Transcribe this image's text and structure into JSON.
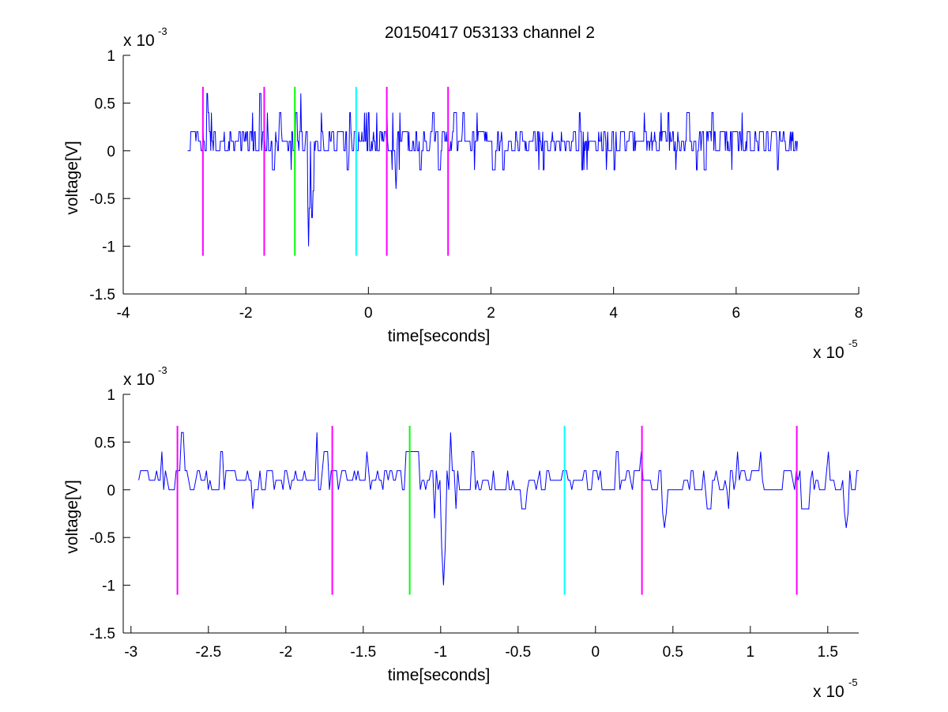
{
  "chart_data": [
    {
      "type": "line",
      "title": "20150417 053133 channel 2",
      "xlabel": "time[seconds]",
      "ylabel": "voltage[V]",
      "x_exponent_label": "x 10",
      "x_exponent": "-5",
      "y_exponent_label": "x 10",
      "y_exponent": "-3",
      "xlim": [
        -4,
        8
      ],
      "ylim": [
        -1.5,
        1
      ],
      "xticks": [
        -4,
        -2,
        0,
        2,
        4,
        6,
        8
      ],
      "xtick_labels": [
        "-4",
        "-2",
        "0",
        "2",
        "4",
        "6",
        "8"
      ],
      "yticks": [
        1,
        0.5,
        0,
        -0.5,
        -1,
        -1.5
      ],
      "ytick_labels": [
        "1",
        "0.5",
        "0",
        "-0.5",
        "-1",
        "-1.5"
      ],
      "grid": false,
      "trace": {
        "color": "#0000ff",
        "x_range": [
          -2.95,
          7.0
        ],
        "baseline_levels": [
          0,
          0.1,
          0.2
        ],
        "noise_amplitude": 0.2,
        "events": [
          {
            "x": -2.63,
            "y": 0.6
          },
          {
            "x": -1.77,
            "y": 0.6
          },
          {
            "x": -1.45,
            "y": 0.4
          },
          {
            "x": -1.18,
            "y": 0.4
          },
          {
            "x": -1.1,
            "y": 0.6
          },
          {
            "x": -0.98,
            "y": -1.0
          },
          {
            "x": -0.92,
            "y": -0.7
          },
          {
            "x": -0.3,
            "y": 0.4
          },
          {
            "x": 0.0,
            "y": 0.4
          },
          {
            "x": 0.45,
            "y": -0.4
          },
          {
            "x": 1.4,
            "y": 0.4
          },
          {
            "x": 4.5,
            "y": 0.4
          },
          {
            "x": 5.2,
            "y": 0.4
          },
          {
            "x": 5.6,
            "y": 0.4
          },
          {
            "x": 6.1,
            "y": 0.4
          }
        ]
      },
      "markers": [
        {
          "x": -2.7,
          "y_min": -1.1,
          "y_max": 0.67,
          "color": "#ff00ff"
        },
        {
          "x": -1.7,
          "y_min": -1.1,
          "y_max": 0.67,
          "color": "#ff00ff"
        },
        {
          "x": -1.2,
          "y_min": -1.1,
          "y_max": 0.67,
          "color": "#00ff00"
        },
        {
          "x": -0.2,
          "y_min": -1.1,
          "y_max": 0.67,
          "color": "#00ffff"
        },
        {
          "x": 0.3,
          "y_min": -1.1,
          "y_max": 0.67,
          "color": "#ff00ff"
        },
        {
          "x": 1.3,
          "y_min": -1.1,
          "y_max": 0.67,
          "color": "#ff00ff"
        }
      ]
    },
    {
      "type": "line",
      "title": "",
      "xlabel": "time[seconds]",
      "ylabel": "voltage[V]",
      "x_exponent_label": "x 10",
      "x_exponent": "-5",
      "y_exponent_label": "x 10",
      "y_exponent": "-3",
      "xlim": [
        -3.05,
        1.7
      ],
      "ylim": [
        -1.5,
        1
      ],
      "xticks": [
        -3,
        -2.5,
        -2,
        -1.5,
        -1,
        -0.5,
        0,
        0.5,
        1,
        1.5
      ],
      "xtick_labels": [
        "-3",
        "-2.5",
        "-2",
        "-1.5",
        "-1",
        "-0.5",
        "0",
        "0.5",
        "1",
        "1.5"
      ],
      "yticks": [
        1,
        0.5,
        0,
        -0.5,
        -1,
        -1.5
      ],
      "ytick_labels": [
        "1",
        "0.5",
        "0",
        "-0.5",
        "-1",
        "-1.5"
      ],
      "grid": false,
      "trace": {
        "color": "#0000ff",
        "x_range": [
          -2.95,
          1.7
        ],
        "baseline_levels": [
          0,
          0.1,
          0.2
        ],
        "noise_amplitude": 0.2,
        "events": [
          {
            "x": -2.67,
            "y": 0.6
          },
          {
            "x": -2.42,
            "y": 0.4
          },
          {
            "x": -1.8,
            "y": 0.6
          },
          {
            "x": -1.48,
            "y": 0.4
          },
          {
            "x": -1.22,
            "y": 0.4
          },
          {
            "x": -1.04,
            "y": -0.3
          },
          {
            "x": -0.98,
            "y": -1.0
          },
          {
            "x": -0.94,
            "y": 0.6
          },
          {
            "x": 0.3,
            "y": 0.4
          },
          {
            "x": 0.45,
            "y": -0.4
          },
          {
            "x": 1.07,
            "y": 0.4
          },
          {
            "x": 1.5,
            "y": 0.4
          },
          {
            "x": 1.62,
            "y": -0.4
          }
        ]
      },
      "markers": [
        {
          "x": -2.7,
          "y_min": -1.1,
          "y_max": 0.67,
          "color": "#ff00ff"
        },
        {
          "x": -1.7,
          "y_min": -1.1,
          "y_max": 0.67,
          "color": "#ff00ff"
        },
        {
          "x": -1.2,
          "y_min": -1.1,
          "y_max": 0.67,
          "color": "#00ff00"
        },
        {
          "x": -0.2,
          "y_min": -1.1,
          "y_max": 0.67,
          "color": "#00ffff"
        },
        {
          "x": 0.3,
          "y_min": -1.1,
          "y_max": 0.67,
          "color": "#ff00ff"
        },
        {
          "x": 1.3,
          "y_min": -1.1,
          "y_max": 0.67,
          "color": "#ff00ff"
        }
      ]
    }
  ]
}
